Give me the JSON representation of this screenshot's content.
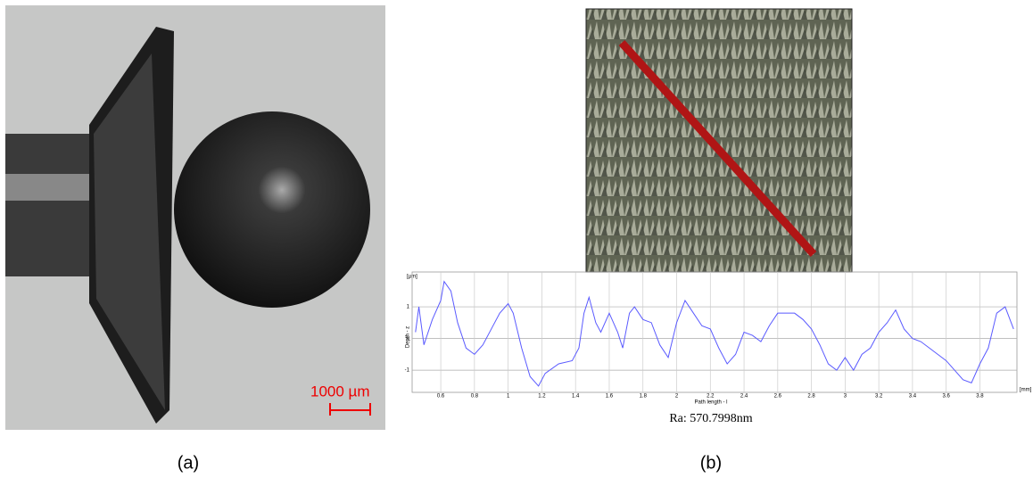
{
  "figure": {
    "panel_a": {
      "scale_bar": "1000 µm",
      "caption": "(a)"
    },
    "panel_b": {
      "caption": "(b)",
      "roughness": "Ra: 570.7998nm"
    }
  },
  "chart_data": {
    "type": "line",
    "y_label": "Depth - z",
    "y_unit": "[µm]",
    "x_label": "Path length - l",
    "x_unit": "[mm]",
    "x": [
      0.45,
      0.47,
      0.5,
      0.55,
      0.6,
      0.62,
      0.66,
      0.7,
      0.75,
      0.8,
      0.85,
      0.9,
      0.95,
      1.0,
      1.03,
      1.08,
      1.13,
      1.18,
      1.22,
      1.3,
      1.38,
      1.42,
      1.45,
      1.48,
      1.52,
      1.55,
      1.6,
      1.65,
      1.68,
      1.72,
      1.75,
      1.8,
      1.85,
      1.9,
      1.95,
      2.0,
      2.05,
      2.1,
      2.15,
      2.2,
      2.25,
      2.3,
      2.35,
      2.4,
      2.45,
      2.5,
      2.55,
      2.6,
      2.7,
      2.75,
      2.8,
      2.85,
      2.9,
      2.95,
      3.0,
      3.05,
      3.1,
      3.15,
      3.2,
      3.25,
      3.3,
      3.35,
      3.4,
      3.45,
      3.5,
      3.55,
      3.6,
      3.7,
      3.75,
      3.8,
      3.85,
      3.9,
      3.95,
      4.0
    ],
    "series": [
      {
        "color": "#5a5aff",
        "values": [
          0.2,
          1.0,
          -0.2,
          0.6,
          1.2,
          1.8,
          1.5,
          0.5,
          -0.3,
          -0.5,
          -0.2,
          0.3,
          0.8,
          1.1,
          0.8,
          -0.3,
          -1.2,
          -1.5,
          -1.1,
          -0.8,
          -0.7,
          -0.3,
          0.8,
          1.3,
          0.5,
          0.2,
          0.8,
          0.2,
          -0.3,
          0.8,
          1.0,
          0.6,
          0.5,
          -0.2,
          -0.6,
          0.5,
          1.2,
          0.8,
          0.4,
          0.3,
          -0.3,
          -0.8,
          -0.5,
          0.2,
          0.1,
          -0.1,
          0.4,
          0.8,
          0.8,
          0.6,
          0.3,
          -0.2,
          -0.8,
          -1.0,
          -0.6,
          -1.0,
          -0.5,
          -0.3,
          0.2,
          0.5,
          0.9,
          0.3,
          0.0,
          -0.1,
          -0.3,
          -0.5,
          -0.7,
          -1.3,
          -1.4,
          -0.8,
          -0.3,
          0.8,
          1.0,
          0.3
        ]
      }
    ],
    "xlim": [
      0.43,
      4.02
    ],
    "ylim": [
      -1.7,
      2.1
    ],
    "xticks": [
      0.6,
      0.8,
      1,
      1.2,
      1.4,
      1.6,
      1.8,
      2,
      2.2,
      2.4,
      2.6,
      2.8,
      3,
      3.2,
      3.4,
      3.6,
      3.8
    ],
    "yticks": [
      -1,
      0,
      1
    ],
    "grid": true
  }
}
